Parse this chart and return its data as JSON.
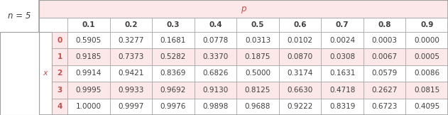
{
  "n_label": "n = 5",
  "p_label": "p",
  "x_label": "x",
  "col_headers": [
    "0.1",
    "0.2",
    "0.3",
    "0.4",
    "0.5",
    "0.6",
    "0.7",
    "0.8",
    "0.9"
  ],
  "row_headers": [
    "0",
    "1",
    "2",
    "3",
    "4"
  ],
  "table_data": [
    [
      "0.5905",
      "0.3277",
      "0.1681",
      "0.0778",
      "0.0313",
      "0.0102",
      "0.0024",
      "0.0003",
      "0.0000"
    ],
    [
      "0.9185",
      "0.7373",
      "0.5282",
      "0.3370",
      "0.1875",
      "0.0870",
      "0.0308",
      "0.0067",
      "0.0005"
    ],
    [
      "0.9914",
      "0.9421",
      "0.8369",
      "0.6826",
      "0.5000",
      "0.3174",
      "0.1631",
      "0.0579",
      "0.0086"
    ],
    [
      "0.9995",
      "0.9933",
      "0.9692",
      "0.9130",
      "0.8125",
      "0.6630",
      "0.4718",
      "0.2627",
      "0.0815"
    ],
    [
      "1.0000",
      "0.9997",
      "0.9976",
      "0.9898",
      "0.9688",
      "0.9222",
      "0.8319",
      "0.6723",
      "0.4095"
    ]
  ],
  "header_bg": "#fce8e8",
  "row_bg_pink": "#fce8e8",
  "row_bg_white": "#ffffff",
  "border_color": "#a0a0a0",
  "header_text_color": "#c0504d",
  "data_text_color": "#3f3f3f",
  "label_text_color": "#3f3f3f",
  "red_label_color": "#c0504d",
  "font_size": 7.5,
  "header_font_size": 8.5,
  "small_label_size": 8.0,
  "n_label_size": 8.5,
  "fig_width": 6.31,
  "fig_height": 1.62,
  "dpi": 100
}
